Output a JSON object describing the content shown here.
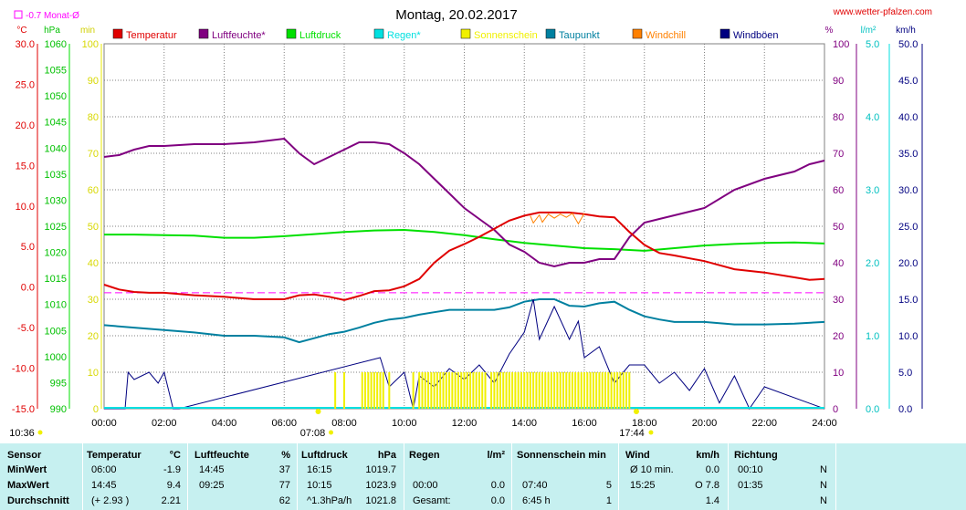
{
  "header": {
    "title": "Montag, 20.02.2017",
    "website": "www.wetter-pfalzen.com",
    "month_avg_label": "-0.7 Monat-Ø"
  },
  "axes": {
    "units_left": [
      "°C",
      "hPa",
      "min"
    ],
    "units_right": [
      "%",
      "l/m²",
      "km/h"
    ],
    "temp_ticks": [
      "30.0",
      "25.0",
      "20.0",
      "15.0",
      "10.0",
      "5.0",
      "0.0",
      "-5.0",
      "-10.0",
      "-15.0"
    ],
    "hpa_ticks": [
      "1060",
      "1055",
      "1050",
      "1045",
      "1040",
      "1035",
      "1030",
      "1025",
      "1020",
      "1015",
      "1010",
      "1005",
      "1000",
      "995",
      "990"
    ],
    "min_ticks": [
      "100",
      "90",
      "80",
      "70",
      "60",
      "50",
      "40",
      "30",
      "20",
      "10",
      "0"
    ],
    "pct_ticks": [
      "100",
      "90",
      "80",
      "70",
      "60",
      "50",
      "40",
      "30",
      "20",
      "10",
      "0"
    ],
    "rain_ticks": [
      "5.0",
      "4.0",
      "3.0",
      "2.0",
      "1.0",
      "0.0"
    ],
    "wind_ticks": [
      "50.0",
      "45.0",
      "40.0",
      "35.0",
      "30.0",
      "25.0",
      "20.0",
      "15.0",
      "10.0",
      "5.0",
      "0.0"
    ],
    "x_ticks": [
      "00:00",
      "02:00",
      "04:00",
      "06:00",
      "08:00",
      "10:00",
      "12:00",
      "14:00",
      "16:00",
      "18:00",
      "20:00",
      "22:00",
      "24:00"
    ],
    "sunrise": "07:08",
    "sunset": "17:44",
    "daylength_left": "10:36"
  },
  "legend": [
    {
      "label": "Temperatur",
      "color": "#e00000"
    },
    {
      "label": "Luftfeuchte*",
      "color": "#800080"
    },
    {
      "label": "Luftdruck",
      "color": "#00e000"
    },
    {
      "label": "Regen*",
      "color": "#00e0e0"
    },
    {
      "label": "Sonnenschein",
      "color": "#f0f000"
    },
    {
      "label": "Taupunkt",
      "color": "#0080a0"
    },
    {
      "label": "Windchill",
      "color": "#ff8000"
    },
    {
      "label": "Windböen",
      "color": "#000080"
    }
  ],
  "chart_data": {
    "type": "line",
    "x_unit": "hour of day",
    "xlim": [
      0,
      24
    ],
    "scales": {
      "temperature": [
        -15,
        30
      ],
      "pressure": [
        990,
        1060
      ],
      "humidity": [
        0,
        100
      ],
      "wind": [
        0,
        50
      ],
      "sunshine": [
        0,
        100
      ],
      "rain": [
        0,
        5
      ]
    },
    "month_avg_temperature": -0.7,
    "series": [
      {
        "name": "Temperatur",
        "color": "#e00000",
        "scale": "temperature",
        "x": [
          0,
          0.5,
          1,
          1.5,
          2,
          3,
          4,
          5,
          6,
          6.5,
          7,
          7.5,
          8,
          8.5,
          9,
          9.5,
          10,
          10.5,
          11,
          11.5,
          12,
          12.5,
          13,
          13.5,
          14,
          14.5,
          15,
          15.5,
          16,
          16.5,
          17,
          17.5,
          18,
          18.5,
          19,
          20,
          21,
          22,
          23,
          23.5,
          24
        ],
        "y": [
          0.3,
          -0.3,
          -0.6,
          -0.7,
          -0.7,
          -1.0,
          -1.2,
          -1.5,
          -1.5,
          -1.0,
          -0.9,
          -1.2,
          -1.6,
          -1.1,
          -0.5,
          -0.4,
          0.1,
          1.0,
          3.0,
          4.5,
          5.3,
          6.2,
          7.2,
          8.2,
          8.8,
          9.2,
          9.2,
          9.2,
          9.0,
          8.7,
          8.6,
          6.8,
          5.2,
          4.2,
          3.9,
          3.2,
          2.2,
          1.8,
          1.2,
          0.9,
          1.0
        ]
      },
      {
        "name": "Luftfeuchte*",
        "color": "#800080",
        "scale": "humidity",
        "x": [
          0,
          0.5,
          1,
          1.5,
          2,
          3,
          4,
          5,
          6,
          6.5,
          7,
          7.5,
          8,
          8.5,
          9,
          9.5,
          10,
          10.5,
          11,
          11.5,
          12,
          12.5,
          13,
          13.5,
          14,
          14.5,
          15,
          15.5,
          16,
          16.5,
          17,
          17.5,
          18,
          18.5,
          19,
          20,
          21,
          22,
          23,
          23.5,
          24
        ],
        "y": [
          69,
          69.5,
          71,
          72,
          72,
          72.5,
          72.5,
          73,
          74,
          70,
          67,
          69,
          71,
          73,
          73,
          72.5,
          70,
          67,
          63,
          59,
          55,
          52,
          49,
          45,
          43,
          40,
          39,
          40,
          40,
          41,
          41,
          47,
          51,
          52,
          53,
          55,
          60,
          63,
          65,
          67,
          68
        ]
      },
      {
        "name": "Luftdruck",
        "color": "#00e000",
        "scale": "pressure",
        "x": [
          0,
          1,
          2,
          3,
          4,
          5,
          6,
          7,
          8,
          9,
          10,
          11,
          12,
          13,
          14,
          15,
          16,
          17,
          18,
          19,
          20,
          21,
          22,
          23,
          24
        ],
        "y": [
          1023.4,
          1023.4,
          1023.3,
          1023.2,
          1022.8,
          1022.8,
          1023.1,
          1023.5,
          1023.9,
          1024.2,
          1024.3,
          1023.9,
          1023.3,
          1022.5,
          1021.8,
          1021.3,
          1020.8,
          1020.6,
          1020.3,
          1020.8,
          1021.3,
          1021.6,
          1021.8,
          1021.9,
          1021.7
        ]
      },
      {
        "name": "Taupunkt",
        "color": "#0080a0",
        "scale": "temperature",
        "x": [
          0,
          1,
          2,
          3,
          4,
          5,
          6,
          6.5,
          7,
          7.5,
          8,
          8.5,
          9,
          9.5,
          10,
          10.5,
          11,
          11.5,
          12,
          12.5,
          13,
          13.5,
          14,
          14.5,
          15,
          15.5,
          16,
          16.5,
          17,
          17.5,
          18,
          18.5,
          19,
          20,
          21,
          22,
          23,
          24
        ],
        "y": [
          -4.7,
          -5.0,
          -5.3,
          -5.6,
          -6.0,
          -6.0,
          -6.2,
          -6.8,
          -6.3,
          -5.8,
          -5.5,
          -5.0,
          -4.4,
          -4.0,
          -3.8,
          -3.4,
          -3.1,
          -2.8,
          -2.8,
          -2.8,
          -2.8,
          -2.5,
          -1.8,
          -1.5,
          -1.5,
          -2.3,
          -2.4,
          -2.0,
          -1.8,
          -2.8,
          -3.6,
          -4.0,
          -4.3,
          -4.3,
          -4.6,
          -4.6,
          -4.5,
          -4.3
        ]
      },
      {
        "name": "Windchill",
        "color": "#ff8000",
        "scale": "temperature",
        "x": [
          14.2,
          14.3,
          14.5,
          14.6,
          14.8,
          15.0,
          15.2,
          15.4,
          15.6,
          15.8,
          16.0
        ],
        "y": [
          8.8,
          7.9,
          8.9,
          8.0,
          9.0,
          8.5,
          9.0,
          8.6,
          9.1,
          7.8,
          9.1
        ]
      },
      {
        "name": "Windböen",
        "color": "#000080",
        "scale": "wind",
        "x": [
          0,
          0.7,
          0.8,
          1,
          1.5,
          1.8,
          2,
          2.3,
          2.5,
          9.2,
          9.5,
          10,
          10.3,
          10.5,
          11,
          11.5,
          12,
          12.5,
          13,
          13.5,
          14,
          14.3,
          14.5,
          15,
          15.5,
          15.8,
          16,
          16.5,
          17,
          17.5,
          18,
          18.5,
          19,
          19.5,
          20,
          20.5,
          21,
          21.5,
          22,
          24
        ],
        "y": [
          0,
          0,
          5.0,
          4.0,
          5.0,
          3.5,
          5.0,
          0,
          0,
          7.0,
          3.0,
          5.0,
          0,
          4.5,
          3.0,
          5.5,
          4.0,
          6.0,
          3.5,
          7.5,
          10.5,
          15.0,
          9.5,
          14.0,
          9.5,
          12.0,
          7.0,
          8.5,
          3.5,
          6.0,
          6.0,
          3.5,
          5.0,
          2.5,
          5.5,
          0.8,
          4.5,
          0,
          3.0,
          0
        ]
      }
    ],
    "sunshine_minutes": {
      "name": "Sonnenschein",
      "color": "#f0f000",
      "x": [
        7.7,
        8.0,
        8.6,
        8.7,
        8.8,
        8.9,
        9.0,
        9.1,
        9.2,
        9.3,
        9.5,
        10.3,
        10.5,
        10.6,
        10.7,
        10.8,
        10.9,
        11.0,
        11.1,
        11.2,
        11.3,
        11.4,
        11.5,
        11.6,
        11.7,
        11.8,
        11.9,
        12.0,
        12.1,
        12.2,
        12.3,
        12.4,
        12.5,
        12.6,
        12.7,
        12.9,
        13.0,
        13.1,
        13.2,
        13.3,
        13.4,
        13.5,
        13.6,
        13.7,
        13.8,
        13.9,
        14.0,
        14.1,
        14.2,
        14.3,
        14.4,
        14.5,
        14.6,
        14.7,
        14.8,
        14.9,
        15.0,
        15.1,
        15.2,
        15.3,
        15.4,
        15.5,
        15.6,
        15.7,
        15.8,
        15.9,
        16.0,
        16.1,
        16.2,
        16.3,
        16.4,
        16.5,
        16.6,
        16.7,
        16.8,
        16.9,
        17.0,
        17.1,
        17.2,
        17.3,
        17.4,
        17.5
      ],
      "y": [
        5,
        5,
        5,
        5,
        5,
        5,
        5,
        5,
        5,
        5,
        5,
        5,
        5,
        5,
        5,
        5,
        5,
        5,
        5,
        5,
        5,
        5,
        5,
        5,
        5,
        5,
        5,
        5,
        5,
        5,
        5,
        5,
        5,
        5,
        5,
        5,
        5,
        5,
        5,
        5,
        5,
        5,
        5,
        5,
        5,
        5,
        5,
        5,
        5,
        5,
        5,
        5,
        5,
        5,
        5,
        5,
        5,
        5,
        5,
        5,
        5,
        5,
        5,
        5,
        5,
        5,
        5,
        5,
        5,
        5,
        5,
        5,
        5,
        5,
        5,
        5,
        5,
        5,
        5,
        5,
        5,
        5
      ]
    }
  },
  "table": {
    "headers": [
      "Sensor",
      "Temperatur",
      "°C",
      "Luftfeuchte",
      "%",
      "Luftdruck",
      "hPa",
      "Regen",
      "l/m²",
      "Sonnenschein min",
      "Wind",
      "km/h",
      "Richtung"
    ],
    "rows": [
      {
        "label": "MinWert",
        "temp_time": "06:00",
        "temp": "-1.9",
        "hum_time": "14:45",
        "hum": "37",
        "press_time": "16:15",
        "press": "1019.7",
        "rain_time": "",
        "rain": "",
        "sun_time": "",
        "sun": "",
        "wind_time": "Ø 10 min.",
        "wind": "0.0",
        "dir_time": "00:10",
        "dir": "N"
      },
      {
        "label": "MaxWert",
        "temp_time": "14:45",
        "temp": "9.4",
        "hum_time": "09:25",
        "hum": "77",
        "press_time": "10:15",
        "press": "1023.9",
        "rain_time": "00:00",
        "rain": "0.0",
        "sun_time": "07:40",
        "sun": "5",
        "wind_time": "15:25",
        "wind": "O 7.8",
        "dir_time": "01:35",
        "dir": "N"
      },
      {
        "label": "Durchschnitt",
        "temp_time": "(+ 2.93 )",
        "temp": "2.21",
        "hum_time": "",
        "hum": "62",
        "press_time": "^1.3hPa/h",
        "press": "1021.8",
        "rain_time": "Gesamt:",
        "rain": "0.0",
        "sun_time": "6:45 h",
        "sun": "1",
        "wind_time": "",
        "wind": "1.4",
        "dir_time": "",
        "dir": "N"
      }
    ]
  }
}
